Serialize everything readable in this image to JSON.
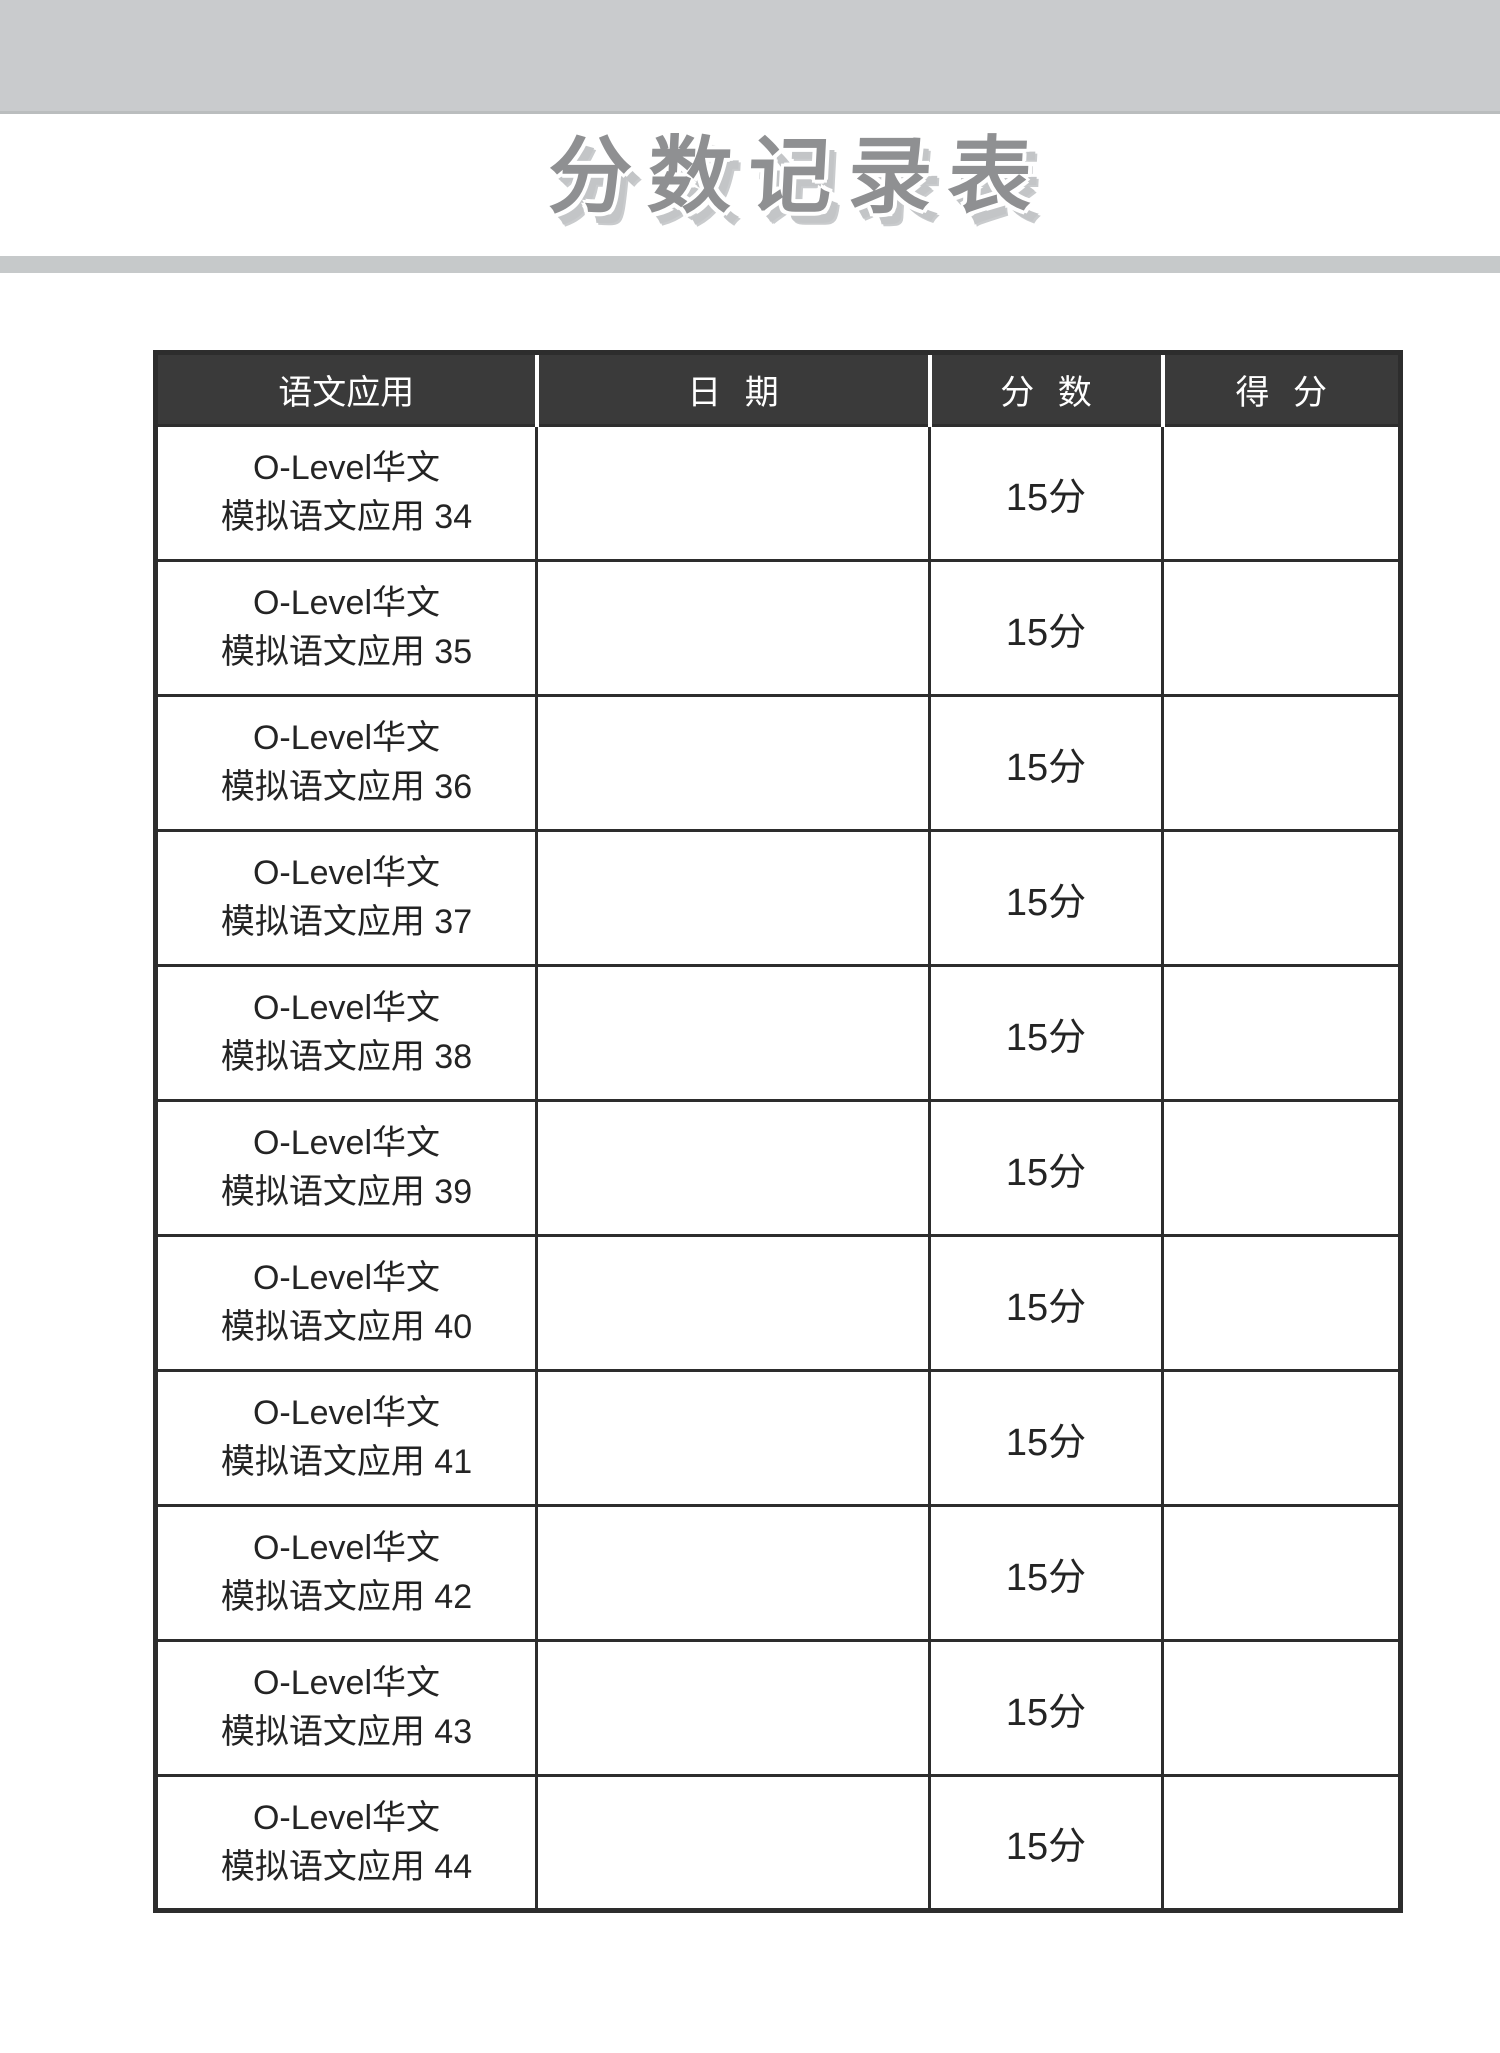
{
  "page": {
    "title": "分数记录表"
  },
  "table": {
    "headers": [
      "语文应用",
      "日 期",
      "分 数",
      "得 分"
    ],
    "rows": [
      {
        "name_line1": "O-Level华文",
        "name_line2": "模拟语文应用 34",
        "date": "",
        "score": "15分",
        "obtained": ""
      },
      {
        "name_line1": "O-Level华文",
        "name_line2": "模拟语文应用 35",
        "date": "",
        "score": "15分",
        "obtained": ""
      },
      {
        "name_line1": "O-Level华文",
        "name_line2": "模拟语文应用 36",
        "date": "",
        "score": "15分",
        "obtained": ""
      },
      {
        "name_line1": "O-Level华文",
        "name_line2": "模拟语文应用 37",
        "date": "",
        "score": "15分",
        "obtained": ""
      },
      {
        "name_line1": "O-Level华文",
        "name_line2": "模拟语文应用 38",
        "date": "",
        "score": "15分",
        "obtained": ""
      },
      {
        "name_line1": "O-Level华文",
        "name_line2": "模拟语文应用 39",
        "date": "",
        "score": "15分",
        "obtained": ""
      },
      {
        "name_line1": "O-Level华文",
        "name_line2": "模拟语文应用 40",
        "date": "",
        "score": "15分",
        "obtained": ""
      },
      {
        "name_line1": "O-Level华文",
        "name_line2": "模拟语文应用 41",
        "date": "",
        "score": "15分",
        "obtained": ""
      },
      {
        "name_line1": "O-Level华文",
        "name_line2": "模拟语文应用 42",
        "date": "",
        "score": "15分",
        "obtained": ""
      },
      {
        "name_line1": "O-Level华文",
        "name_line2": "模拟语文应用 43",
        "date": "",
        "score": "15分",
        "obtained": ""
      },
      {
        "name_line1": "O-Level华文",
        "name_line2": "模拟语文应用 44",
        "date": "",
        "score": "15分",
        "obtained": ""
      }
    ]
  },
  "colors": {
    "band_gray": "#c9cbcd",
    "header_bg": "#3a3a3a",
    "border": "#2d2d2d",
    "title_gray": "#8f9092"
  }
}
